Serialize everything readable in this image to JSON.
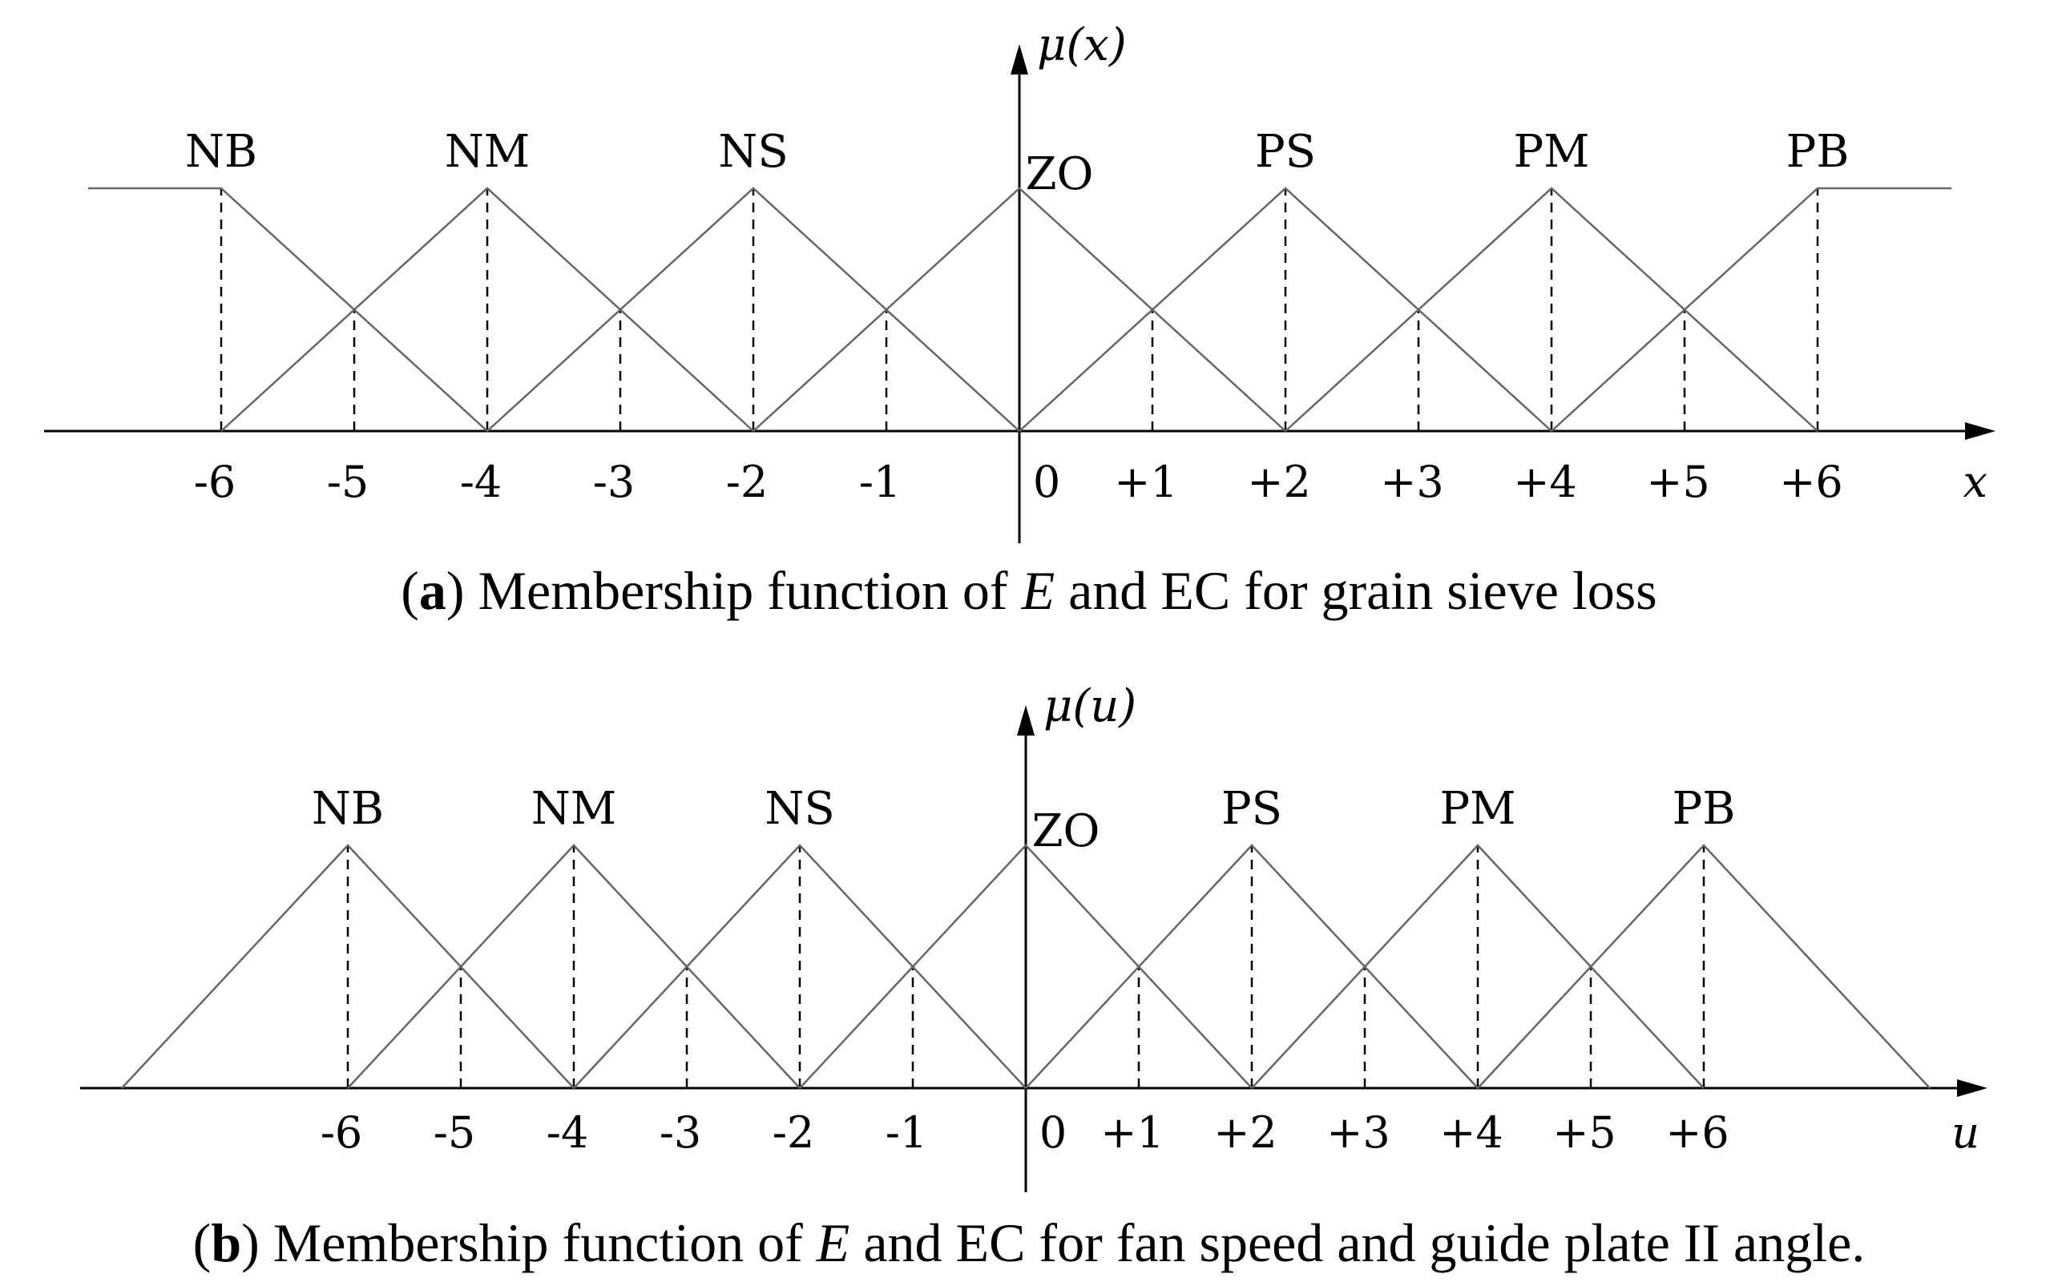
{
  "chart_data": [
    {
      "type": "line",
      "panel": "a",
      "caption": {
        "open": "(",
        "tag": "a",
        "close": ")",
        "text1": " Membership function of ",
        "italic": "E",
        "text2": " and EC for grain sieve loss"
      },
      "ylabel": "μ(x)",
      "xlabel": "x",
      "xlim": [
        -6,
        6
      ],
      "ylim": [
        0,
        1
      ],
      "xticks": [
        -6,
        -5,
        -4,
        -3,
        -2,
        -1,
        0,
        1,
        2,
        3,
        4,
        5,
        6
      ],
      "xtick_labels": [
        "-6",
        "-5",
        "-4",
        "-3",
        "-2",
        "-1",
        "0",
        "+1",
        "+2",
        "+3",
        "+4",
        "+5",
        "+6"
      ],
      "series": [
        {
          "name": "NB",
          "x": [
            -6,
            -4
          ],
          "y": [
            1,
            0
          ],
          "left_shoulder": true
        },
        {
          "name": "NM",
          "x": [
            -6,
            -4,
            -2
          ],
          "y": [
            0,
            1,
            0
          ]
        },
        {
          "name": "NS",
          "x": [
            -4,
            -2,
            0
          ],
          "y": [
            0,
            1,
            0
          ]
        },
        {
          "name": "ZO",
          "x": [
            -2,
            0,
            2
          ],
          "y": [
            0,
            1,
            0
          ]
        },
        {
          "name": "PS",
          "x": [
            0,
            2,
            4
          ],
          "y": [
            0,
            1,
            0
          ]
        },
        {
          "name": "PM",
          "x": [
            2,
            4,
            6
          ],
          "y": [
            0,
            1,
            0
          ]
        },
        {
          "name": "PB",
          "x": [
            4,
            6
          ],
          "y": [
            0,
            1
          ],
          "right_shoulder": true
        }
      ],
      "dashed_x": [
        -6,
        -5,
        -4,
        -3,
        -2,
        -1,
        1,
        2,
        3,
        4,
        5,
        6
      ],
      "grid": false
    },
    {
      "type": "line",
      "panel": "b",
      "caption": {
        "open": "(",
        "tag": "b",
        "close": ")",
        "text1": " Membership function of ",
        "italic": "E",
        "text2": " and EC for fan speed and guide plate II angle."
      },
      "ylabel": "μ(u)",
      "xlabel": "u",
      "xlim": [
        -8,
        8
      ],
      "ylim": [
        0,
        1
      ],
      "xticks": [
        -6,
        -5,
        -4,
        -3,
        -2,
        -1,
        0,
        1,
        2,
        3,
        4,
        5,
        6
      ],
      "xtick_labels": [
        "-6",
        "-5",
        "-4",
        "-3",
        "-2",
        "-1",
        "0",
        "+1",
        "+2",
        "+3",
        "+4",
        "+5",
        "+6"
      ],
      "series": [
        {
          "name": "NB",
          "x": [
            -8,
            -6,
            -4
          ],
          "y": [
            0,
            1,
            0
          ]
        },
        {
          "name": "NM",
          "x": [
            -6,
            -4,
            -2
          ],
          "y": [
            0,
            1,
            0
          ]
        },
        {
          "name": "NS",
          "x": [
            -4,
            -2,
            0
          ],
          "y": [
            0,
            1,
            0
          ]
        },
        {
          "name": "ZO",
          "x": [
            -2,
            0,
            2
          ],
          "y": [
            0,
            1,
            0
          ]
        },
        {
          "name": "PS",
          "x": [
            0,
            2,
            4
          ],
          "y": [
            0,
            1,
            0
          ]
        },
        {
          "name": "PM",
          "x": [
            2,
            4,
            6
          ],
          "y": [
            0,
            1,
            0
          ]
        },
        {
          "name": "PB",
          "x": [
            4,
            6,
            8
          ],
          "y": [
            0,
            1,
            0
          ]
        }
      ],
      "dashed_x": [
        -6,
        -5,
        -4,
        -3,
        -2,
        -1,
        1,
        2,
        3,
        4,
        5,
        6
      ],
      "grid": false
    }
  ]
}
